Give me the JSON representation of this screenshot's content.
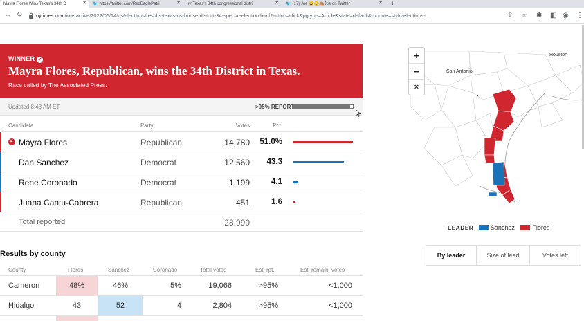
{
  "browser": {
    "tabs": [
      {
        "label": "Mayra Flores Wins Texas's 34th D",
        "icon": "nyt-icon",
        "active": true
      },
      {
        "label": "https://twitter.com/RedEaglePatri",
        "icon": "twitter-icon"
      },
      {
        "label": "Texas's 34th congressional distri",
        "icon": "wikipedia-icon"
      },
      {
        "label": "(17) Joe 😀😊🙈Joe on Twitter",
        "icon": "twitter-icon"
      }
    ],
    "new_tab": "+",
    "url_host": "nytimes.com",
    "url_path": "/interactive/2022/06/14/us/elections/results-texas-us-house-district-34-special-election.html?action=click&pgtype=Article&state=default&module=styln-elections-..."
  },
  "winner": {
    "label": "WINNER",
    "headline": "Mayra Flores, Republican, wins the 34th District in Texas.",
    "called": "Race called by The Associated Press."
  },
  "status": {
    "updated": "Updated 8:48 AM ET",
    "reported": ">95% REPORTED",
    "reported_fraction": 0.95
  },
  "results": {
    "headers": {
      "candidate": "Candidate",
      "party": "Party",
      "votes": "Votes",
      "pct": "Pct."
    },
    "rows": [
      {
        "name": "Mayra Flores",
        "party": "Republican",
        "votes": "14,780",
        "pct": "51.0%",
        "share": 51.0,
        "color": "#d0262f",
        "winner": true
      },
      {
        "name": "Dan Sanchez",
        "party": "Democrat",
        "votes": "12,560",
        "pct": "43.3",
        "share": 43.3,
        "color": "#1a73b8"
      },
      {
        "name": "Rene Coronado",
        "party": "Democrat",
        "votes": "1,199",
        "pct": "4.1",
        "share": 4.1,
        "color": "#1a73b8"
      },
      {
        "name": "Juana Cantu-Cabrera",
        "party": "Republican",
        "votes": "451",
        "pct": "1.6",
        "share": 1.6,
        "color": "#d0262f"
      }
    ],
    "total_label": "Total reported",
    "total_votes": "28,990"
  },
  "county": {
    "title": "Results by county",
    "headers": {
      "county": "County",
      "flores": "Flores",
      "sanchez": "Sanchez",
      "coronado": "Coronado",
      "total": "Total votes",
      "est_rpt": "Est. rpt.",
      "est_remain": "Est. remain. votes"
    },
    "rows": [
      {
        "county": "Cameron",
        "flores": "48%",
        "sanchez": "46%",
        "coronado": "5%",
        "total": "19,066",
        "est_rpt": ">95%",
        "est_remain": "<1,000",
        "leader": "flores"
      },
      {
        "county": "Hidalgo",
        "flores": "43",
        "sanchez": "52",
        "coronado": "4",
        "total": "2,804",
        "est_rpt": ">95%",
        "est_remain": "<1,000",
        "leader": "sanchez"
      }
    ]
  },
  "map": {
    "zoom_in": "+",
    "zoom_out": "−",
    "close": "×",
    "cities": {
      "houston": "Houston",
      "san_antonio": "San Antonio"
    }
  },
  "legend": {
    "label": "LEADER",
    "sanchez": "Sanchez",
    "flores": "Flores",
    "sanchez_color": "#1a73b8",
    "flores_color": "#d0262f"
  },
  "map_modes": {
    "by_leader": "By leader",
    "size_of_lead": "Size of lead",
    "votes_left": "Votes left"
  }
}
